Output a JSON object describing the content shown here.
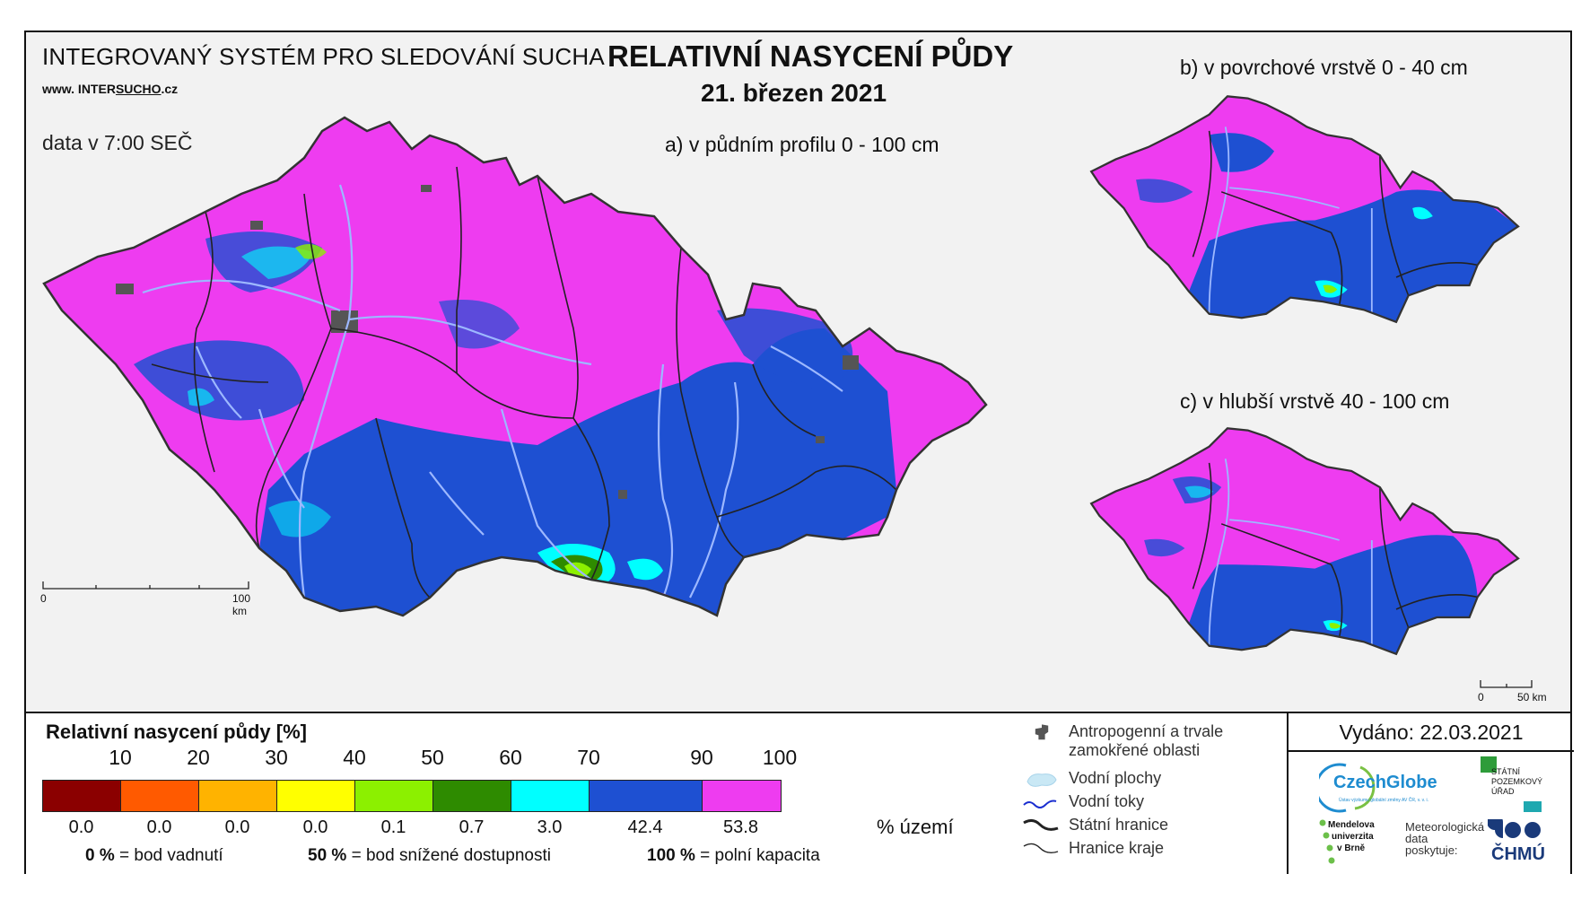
{
  "header": {
    "system_title": "INTEGROVANÝ SYSTÉM PRO SLEDOVÁNÍ SUCHA",
    "website_prefix": "www. INTER",
    "website_underlined": "SUCHO",
    "website_suffix": ".cz",
    "time_note": "data v 7:00 SEČ",
    "main_title": "RELATIVNÍ NASYCENÍ PŮDY",
    "date": "21. březen 2021"
  },
  "maps": {
    "a": {
      "subtitle": "a) v půdním profilu 0 - 100 cm",
      "scale_start": "0",
      "scale_end": "100 km"
    },
    "b": {
      "subtitle": "b) v povrchové vrstvě 0 - 40 cm"
    },
    "c": {
      "subtitle": "c) v hlubší vrstvě 40 - 100 cm",
      "scale_start": "0",
      "scale_end": "50 km"
    }
  },
  "legend": {
    "title": "Relativní nasycení půdy [%]",
    "tick_labels": [
      "10",
      "20",
      "30",
      "40",
      "50",
      "60",
      "70",
      "90",
      "100"
    ],
    "classes": [
      {
        "color": "#8b0000",
        "share": "0.0"
      },
      {
        "color": "#ff5a00",
        "share": "0.0"
      },
      {
        "color": "#ffb300",
        "share": "0.0"
      },
      {
        "color": "#ffff00",
        "share": "0.0"
      },
      {
        "color": "#8cf000",
        "share": "0.1"
      },
      {
        "color": "#2e8b00",
        "share": "0.7"
      },
      {
        "color": "#00ffff",
        "share": "3.0"
      },
      {
        "color": "#1e50d2",
        "share": "42.4"
      },
      {
        "color": "#ee3cf0",
        "share": "53.8"
      }
    ],
    "unit": "% území",
    "definitions": [
      {
        "value": "0 %",
        "text": "= bod vadnutí"
      },
      {
        "value": "50 %",
        "text": "= bod snížené dostupnosti"
      },
      {
        "value": "100 %",
        "text": "= polní kapacita"
      }
    ]
  },
  "symbols": [
    {
      "icon": "urban-area-icon",
      "label": "Antropogenní a trvale zamokřené oblasti"
    },
    {
      "icon": "water-body-icon",
      "label": "Vodní plochy"
    },
    {
      "icon": "river-icon",
      "label": "Vodní toky"
    },
    {
      "icon": "state-border-icon",
      "label": "Státní hranice"
    },
    {
      "icon": "region-border-icon",
      "label": "Hranice kraje"
    }
  ],
  "publisher": {
    "issued": "Vydáno: 22.03.2021",
    "czechglobe": "CzechGlobe",
    "czechglobe_sub": "Ústav výzkumu globální změny AV ČR, v. v. i.",
    "spu": [
      "STÁTNÍ",
      "POZEMKOVÝ",
      "ÚŘAD"
    ],
    "mendel": [
      "Mendelova",
      "univerzita",
      "v Brně"
    ],
    "data_note": [
      "Meteorologická",
      "data",
      "poskytuje:"
    ],
    "chmu": "ČHMÚ"
  },
  "colors": {
    "magenta": "#ee3cf0",
    "blue": "#1e50d2",
    "cyan": "#00ffff",
    "dark_green": "#2e8b00",
    "light_green": "#8cf000",
    "urban": "#555555",
    "border": "#222222",
    "river": "#9db8ff"
  }
}
